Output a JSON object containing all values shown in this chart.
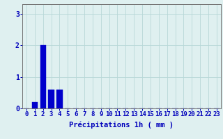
{
  "values": [
    0,
    0.2,
    2.0,
    0.6,
    0.6,
    0,
    0,
    0,
    0,
    0,
    0,
    0,
    0,
    0,
    0,
    0,
    0,
    0,
    0,
    0,
    0,
    0,
    0,
    0
  ],
  "x_labels": [
    "0",
    "1",
    "2",
    "3",
    "4",
    "5",
    "6",
    "7",
    "8",
    "9",
    "10",
    "11",
    "12",
    "13",
    "14",
    "15",
    "16",
    "17",
    "18",
    "19",
    "20",
    "21",
    "22",
    "23"
  ],
  "xlabel": "Précipitations 1h ( mm )",
  "ylim": [
    0,
    3.3
  ],
  "yticks": [
    0,
    1,
    2,
    3
  ],
  "bar_color": "#0000cc",
  "bar_edge_color": "#0000cc",
  "background_color": "#dff0f0",
  "grid_color": "#b8d8d8",
  "axis_color": "#707070",
  "text_color": "#0000bb",
  "label_fontsize": 7.5,
  "tick_fontsize": 6.5
}
